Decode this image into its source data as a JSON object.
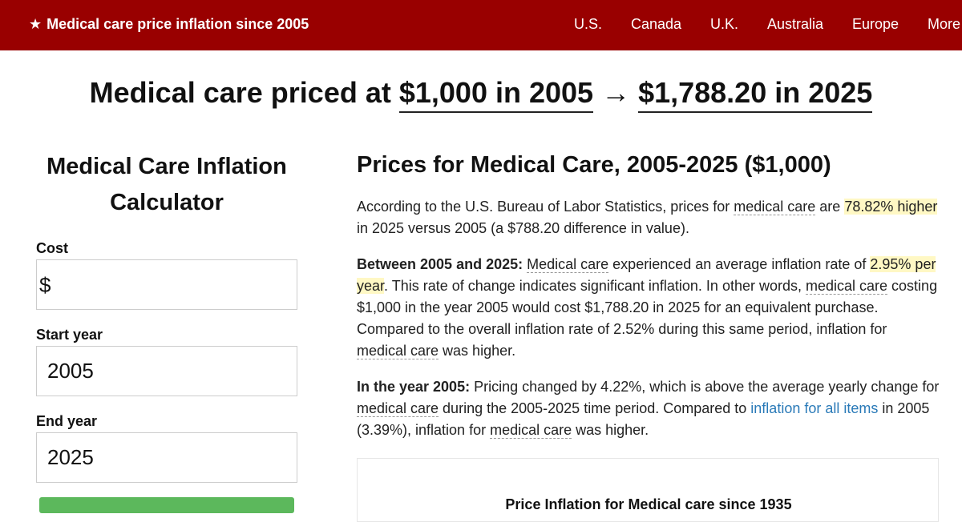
{
  "header": {
    "brand": "Medical care price inflation since 2005",
    "star": "★",
    "nav": [
      "U.S.",
      "Canada",
      "U.K.",
      "Australia",
      "Europe",
      "More"
    ]
  },
  "headline": {
    "prefix": "Medical care priced at",
    "start_value": "$1,000 in 2005",
    "arrow": "→",
    "end_value": "$1,788.20 in 2025"
  },
  "calculator": {
    "title": "Medical Care Inflation Calculator",
    "cost_label": "Cost",
    "cost_prefix": "$",
    "cost_value": "",
    "start_label": "Start year",
    "start_value": "2005",
    "end_label": "End year",
    "end_value": "2025"
  },
  "article": {
    "title": "Prices for Medical Care, 2005-2025 ($1,000)",
    "term": "medical care",
    "term_cap": "Medical care",
    "p1": {
      "a": "According to the U.S. Bureau of Labor Statistics, prices for ",
      "b": " are ",
      "highlight": "78.82% higher",
      "c": " in 2025 versus 2005 (a $788.20 difference in value)."
    },
    "p2": {
      "lead": "Between 2005 and 2025:",
      "a": " experienced an average inflation rate of ",
      "highlight": "2.95% per year",
      "b": ". This rate of change indicates significant inflation. In other words, ",
      "c": " costing $1,000 in the year 2005 would cost $1,788.20 in 2025 for an equivalent purchase. Compared to the overall inflation rate of 2.52% during this same period, inflation for ",
      "d": " was higher."
    },
    "p3": {
      "lead": "In the year 2005:",
      "a": " Pricing changed by 4.22%, which is above the average yearly change for ",
      "b": " during the 2005-2025 time period. Compared to ",
      "link": "inflation for all items",
      "c": " in 2005 (3.39%), inflation for ",
      "d": " was higher."
    }
  },
  "chart": {
    "title": "Price Inflation for Medical care since 1935"
  }
}
